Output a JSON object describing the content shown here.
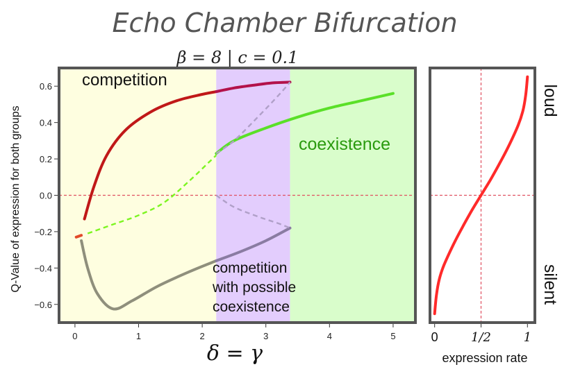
{
  "title": "Echo Chamber Bifurcation",
  "subtitle": "β = 8 | c = 0.1",
  "chart_data": [
    {
      "type": "line",
      "xlabel": "δ = γ",
      "ylabel": "Q-Value of expression for both groups",
      "xlim": [
        -0.25,
        5.35
      ],
      "ylim": [
        -0.7,
        0.7
      ],
      "xticks": [
        "0",
        "1",
        "2",
        "3",
        "4",
        "5"
      ],
      "yticks": [
        "0.6",
        "0.4",
        "0.2",
        "0.0",
        "−0.2",
        "−0.4",
        "−0.6"
      ],
      "regions": [
        {
          "label": "competition",
          "x_range": [
            -0.25,
            2.22
          ],
          "color": "#fefee0"
        },
        {
          "label": "competition with possible coexistence",
          "x_range": [
            2.22,
            3.38
          ],
          "color": "#e3cdfd"
        },
        {
          "label": "coexistence",
          "x_range": [
            3.38,
            5.35
          ],
          "color": "#d9fdcb"
        }
      ],
      "hline": {
        "y": 0.0,
        "color": "#e05060",
        "style": "dashed"
      },
      "series": [
        {
          "style": "solid",
          "color": "#c01818",
          "x": [
            0.15,
            0.3,
            0.5,
            0.8,
            1.2,
            1.6,
            2.0,
            2.22
          ],
          "y": [
            -0.13,
            0.05,
            0.22,
            0.36,
            0.46,
            0.52,
            0.555,
            0.57
          ]
        },
        {
          "style": "solid",
          "color": "#b3124a",
          "x": [
            2.22,
            2.5,
            2.8,
            3.1,
            3.38
          ],
          "y": [
            0.57,
            0.59,
            0.605,
            0.618,
            0.622
          ]
        },
        {
          "style": "dashed",
          "color": "#7cf520",
          "x": [
            0.2,
            0.6,
            1.0,
            1.4,
            1.8,
            2.1,
            2.22
          ],
          "y": [
            -0.21,
            -0.16,
            -0.11,
            -0.04,
            0.08,
            0.18,
            0.22
          ]
        },
        {
          "style": "solid",
          "color": "#5ae028",
          "x": [
            2.22,
            2.5,
            3.0,
            3.5,
            4.0,
            4.5,
            5.0
          ],
          "y": [
            0.23,
            0.3,
            0.37,
            0.43,
            0.48,
            0.52,
            0.56
          ]
        },
        {
          "style": "solid",
          "color": "#8f8f7c",
          "x": [
            0.1,
            0.2,
            0.35,
            0.6,
            0.9,
            1.3,
            1.8,
            2.22
          ],
          "y": [
            -0.25,
            -0.4,
            -0.54,
            -0.625,
            -0.58,
            -0.5,
            -0.42,
            -0.36
          ]
        },
        {
          "style": "solid",
          "color": "#8a7ca2",
          "x": [
            2.22,
            2.6,
            3.0,
            3.38
          ],
          "y": [
            -0.36,
            -0.31,
            -0.25,
            -0.18
          ]
        },
        {
          "style": "dashed",
          "color": "#b0a0c8",
          "x": [
            2.22,
            2.5,
            2.9,
            3.2,
            3.38
          ],
          "y": [
            0.23,
            0.3,
            0.44,
            0.55,
            0.622
          ]
        },
        {
          "style": "dashed",
          "color": "#b0a0c8",
          "x": [
            2.22,
            2.5,
            2.9,
            3.2,
            3.38
          ],
          "y": [
            0.0,
            -0.065,
            -0.12,
            -0.155,
            -0.18
          ]
        },
        {
          "style": "solid",
          "color": "#e24a2a",
          "x": [
            0.02,
            0.1
          ],
          "y": [
            -0.23,
            -0.22
          ]
        }
      ]
    },
    {
      "type": "line",
      "xlabel": "expression rate",
      "xticks": [
        "0",
        "1/2",
        "1"
      ],
      "y_labels": {
        "top": "loud",
        "bottom": "silent"
      },
      "xlim": [
        -0.05,
        1.08
      ],
      "ylim": [
        -1,
        1
      ],
      "series": [
        {
          "style": "solid",
          "color": "#ff2a2a",
          "x": [
            0.0,
            0.02,
            0.05,
            0.1,
            0.2,
            0.3,
            0.4,
            0.5,
            0.6,
            0.7,
            0.8,
            0.9,
            0.95,
            0.98,
            1.0
          ],
          "y": [
            -0.93,
            -0.78,
            -0.66,
            -0.55,
            -0.39,
            -0.25,
            -0.12,
            0.0,
            0.12,
            0.25,
            0.39,
            0.55,
            0.66,
            0.78,
            0.93
          ]
        }
      ]
    }
  ]
}
